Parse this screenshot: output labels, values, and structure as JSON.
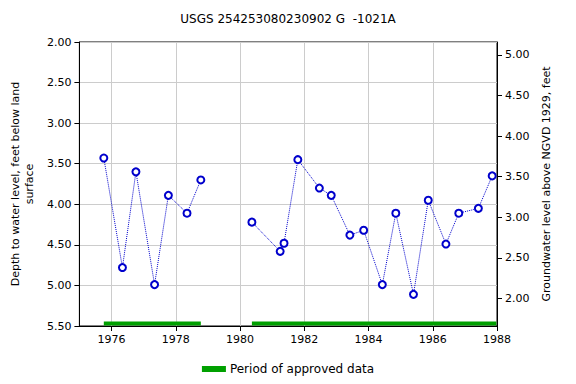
{
  "chart_data": {
    "type": "line",
    "title": "USGS 254253080230902 G  -1021A",
    "x_label": "",
    "y_label": "Depth to water level, feet below land\nsurface",
    "y2_label": "Groundwater level above NGVD 1929, feet",
    "grid": true,
    "legend": "bottom",
    "xlim": [
      1975,
      1988
    ],
    "xticks": [
      1976,
      1978,
      1980,
      1982,
      1984,
      1986,
      1988
    ],
    "ylim": [
      5.5,
      2.0
    ],
    "yticks": [
      {
        "value": 2.0,
        "label": "2.00"
      },
      {
        "value": 2.5,
        "label": "2.50"
      },
      {
        "value": 3.0,
        "label": "3.00"
      },
      {
        "value": 3.5,
        "label": "3.50"
      },
      {
        "value": 4.0,
        "label": "4.00"
      },
      {
        "value": 4.5,
        "label": "4.50"
      },
      {
        "value": 5.0,
        "label": "5.00"
      },
      {
        "value": 5.5,
        "label": "5.50"
      }
    ],
    "y2lim": [
      1.66,
      5.16
    ],
    "y2ticks": [
      {
        "value": 2.0,
        "label": "2.00"
      },
      {
        "value": 2.5,
        "label": "2.50"
      },
      {
        "value": 3.0,
        "label": "3.00"
      },
      {
        "value": 3.5,
        "label": "3.50"
      },
      {
        "value": 4.0,
        "label": "4.00"
      },
      {
        "value": 4.5,
        "label": "4.50"
      },
      {
        "value": 5.0,
        "label": "5.00"
      }
    ],
    "series": [
      {
        "color": "#0000cc",
        "marker": "circle",
        "line_style": "dotted",
        "x": [
          1975.76,
          1976.34,
          1976.76,
          1977.34,
          1977.77,
          1978.35,
          1978.78,
          null,
          1980.37,
          1981.25,
          1981.37,
          1981.8,
          1982.47,
          1982.84,
          1983.42,
          1983.85,
          1984.43,
          1984.85,
          1985.4,
          1985.86,
          1986.41,
          1986.81,
          1987.42,
          1987.85
        ],
        "values": [
          3.43,
          4.78,
          3.6,
          4.99,
          3.89,
          4.11,
          3.7,
          null,
          4.22,
          4.58,
          4.48,
          3.45,
          3.8,
          3.89,
          4.38,
          4.32,
          4.99,
          4.11,
          5.11,
          3.95,
          4.49,
          4.11,
          4.05,
          3.65
        ]
      },
      {
        "name": "Period of approved data",
        "color": "#00a000",
        "marker": "none",
        "line_style": "solid",
        "x": [
          1975.76,
          1978.78,
          null,
          1980.37,
          1987.98
        ],
        "values": [
          5.47,
          5.47,
          null,
          5.47,
          5.47
        ]
      }
    ]
  }
}
